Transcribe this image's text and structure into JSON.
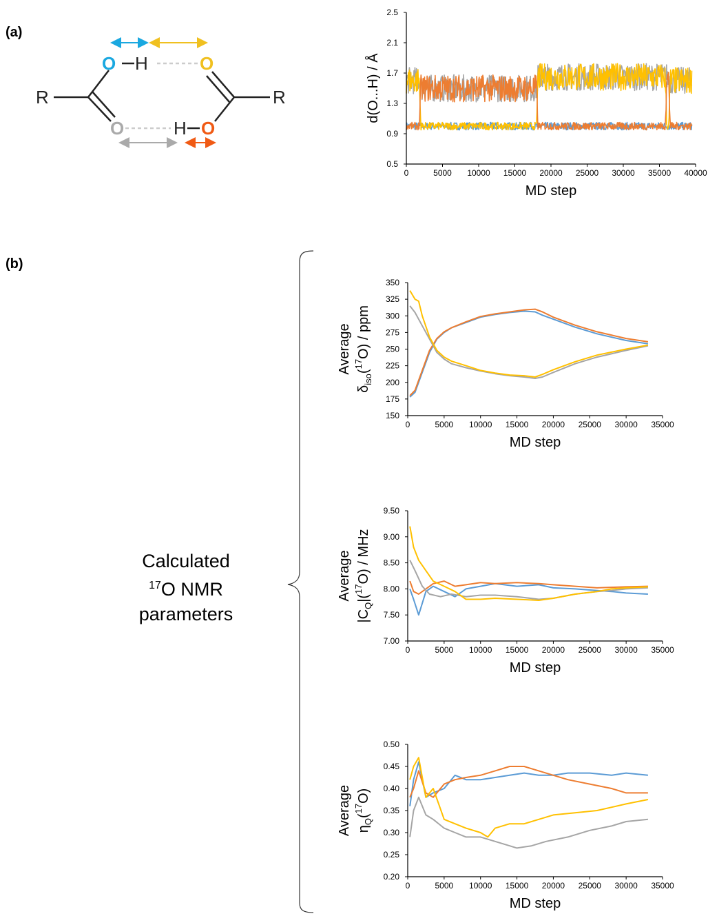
{
  "panels": {
    "a": "(a)",
    "b": "(b)"
  },
  "molecule": {
    "r_left": "R",
    "r_right": "R",
    "o_cyan": "O",
    "h_top": "H",
    "o_yellow": "O",
    "o_gray": "O",
    "h_bottom": "H",
    "o_orange": "O",
    "colors": {
      "cyan": "#1aa8e0",
      "yellow": "#f0c020",
      "gray": "#aaaaaa",
      "orange": "#f05a14",
      "dash": "#cccccc"
    }
  },
  "annotation": {
    "line1": "Calculated",
    "line2_sup": "17",
    "line2_rest": "O NMR",
    "line3": "parameters"
  },
  "series_colors": {
    "blue": "#5b9bd5",
    "orange": "#ed7d31",
    "gray": "#a5a5a5",
    "yellow": "#ffc000"
  },
  "chart_data": [
    {
      "id": "dist",
      "type": "line",
      "xlabel": "MD step",
      "ylabel": "d(O...H) / Å",
      "xlim": [
        0,
        40000
      ],
      "ylim": [
        0.5,
        2.5
      ],
      "xticks": [
        "0",
        "5000",
        "10000",
        "15000",
        "20000",
        "25000",
        "30000",
        "35000",
        "40000"
      ],
      "yticks": [
        "0.5",
        "0.9",
        "1.3",
        "1.7",
        "2.1",
        "2.5"
      ],
      "grid": false,
      "series": [
        {
          "color": "blue",
          "x": [
            0,
            1800,
            2000,
            18000,
            18200,
            36000,
            36300,
            39500
          ],
          "y": [
            1.0,
            1.0,
            1.0,
            1.0,
            1.0,
            1.0,
            1.0,
            1.0
          ]
        },
        {
          "color": "gray",
          "x": [
            0,
            1800,
            2000,
            18000,
            18200,
            36000,
            36300,
            39500
          ],
          "y": [
            1.6,
            1.6,
            1.5,
            1.5,
            1.65,
            1.65,
            1.6,
            1.6
          ]
        },
        {
          "color": "yellow",
          "x": [
            0,
            1800,
            2000,
            18000,
            18200,
            35800,
            36000,
            36300,
            36500,
            39500
          ],
          "y": [
            1.6,
            1.6,
            1.0,
            1.0,
            1.65,
            1.65,
            1.0,
            1.0,
            1.6,
            1.6
          ]
        },
        {
          "color": "orange",
          "x": [
            0,
            1800,
            2000,
            18000,
            18200,
            35800,
            36000,
            36300,
            36500,
            39500
          ],
          "y": [
            1.0,
            1.0,
            1.5,
            1.5,
            1.0,
            1.0,
            1.6,
            1.6,
            1.0,
            1.0
          ]
        }
      ]
    },
    {
      "id": "diso",
      "type": "line",
      "xlabel": "MD step",
      "ylabel_line1": "Average",
      "ylabel_main": "δ",
      "ylabel_sub": "iso",
      "ylabel_paren_open": "(",
      "ylabel_sup": "17",
      "ylabel_rest": "O) / ppm",
      "xlim": [
        0,
        35000
      ],
      "ylim": [
        150,
        350
      ],
      "xticks": [
        "0",
        "5000",
        "10000",
        "15000",
        "20000",
        "25000",
        "30000",
        "35000"
      ],
      "yticks": [
        "150",
        "175",
        "200",
        "225",
        "250",
        "275",
        "300",
        "325",
        "350"
      ],
      "grid": false,
      "series": [
        {
          "color": "blue",
          "x": [
            300,
            1000,
            2000,
            3000,
            4000,
            5000,
            6000,
            8000,
            10000,
            12000,
            14000,
            16000,
            17500,
            18500,
            20000,
            23000,
            26000,
            30000,
            33000
          ],
          "y": [
            178,
            185,
            215,
            245,
            265,
            275,
            282,
            290,
            298,
            302,
            305,
            307,
            306,
            301,
            295,
            283,
            273,
            263,
            258
          ]
        },
        {
          "color": "orange",
          "x": [
            300,
            1000,
            2000,
            3000,
            4000,
            5000,
            6000,
            8000,
            10000,
            12000,
            14000,
            16000,
            17500,
            18500,
            20000,
            23000,
            26000,
            30000,
            33000
          ],
          "y": [
            180,
            188,
            218,
            248,
            266,
            276,
            282,
            291,
            299,
            303,
            306,
            309,
            310,
            306,
            298,
            286,
            276,
            266,
            261
          ]
        },
        {
          "color": "gray",
          "x": [
            300,
            1000,
            2000,
            3000,
            4000,
            5000,
            6000,
            8000,
            10000,
            12000,
            14000,
            16000,
            17500,
            18500,
            20000,
            23000,
            26000,
            30000,
            33000
          ],
          "y": [
            315,
            305,
            285,
            265,
            245,
            235,
            228,
            222,
            217,
            213,
            210,
            208,
            206,
            208,
            215,
            228,
            238,
            248,
            255
          ]
        },
        {
          "color": "yellow",
          "x": [
            300,
            1000,
            1500,
            2000,
            3000,
            4000,
            5000,
            6000,
            8000,
            10000,
            12000,
            14000,
            16000,
            17500,
            18500,
            20000,
            23000,
            26000,
            30000,
            33000
          ],
          "y": [
            338,
            325,
            322,
            300,
            268,
            248,
            238,
            232,
            225,
            218,
            214,
            211,
            210,
            208,
            212,
            219,
            231,
            241,
            250,
            256
          ]
        }
      ]
    },
    {
      "id": "cq",
      "type": "line",
      "xlabel": "MD step",
      "ylabel_line1": "Average",
      "ylabel_pre": "|C",
      "ylabel_sub": "Q",
      "ylabel_mid": "|(",
      "ylabel_sup": "17",
      "ylabel_rest": "O) / MHz",
      "xlim": [
        0,
        35000
      ],
      "ylim": [
        7.0,
        9.5
      ],
      "xticks": [
        "0",
        "5000",
        "10000",
        "15000",
        "20000",
        "25000",
        "30000",
        "35000"
      ],
      "yticks": [
        "7.00",
        "7.50",
        "8.00",
        "8.50",
        "9.00",
        "9.50"
      ],
      "grid": false,
      "series": [
        {
          "color": "blue",
          "x": [
            300,
            800,
            1500,
            2500,
            3500,
            5000,
            6500,
            8000,
            10000,
            12000,
            15000,
            18000,
            20000,
            23000,
            26000,
            28000,
            30000,
            33000
          ],
          "y": [
            8.0,
            7.8,
            7.5,
            7.95,
            8.05,
            7.95,
            7.85,
            8.0,
            8.05,
            8.1,
            8.05,
            8.08,
            8.02,
            8.0,
            7.97,
            7.95,
            7.92,
            7.9
          ]
        },
        {
          "color": "orange",
          "x": [
            300,
            800,
            1500,
            2500,
            3500,
            5000,
            6500,
            8000,
            10000,
            12000,
            15000,
            18000,
            20000,
            23000,
            26000,
            28000,
            30000,
            33000
          ],
          "y": [
            8.15,
            7.95,
            7.9,
            8.0,
            8.1,
            8.15,
            8.05,
            8.08,
            8.12,
            8.1,
            8.12,
            8.1,
            8.08,
            8.05,
            8.02,
            8.03,
            8.04,
            8.05
          ]
        },
        {
          "color": "gray",
          "x": [
            300,
            1000,
            2000,
            3000,
            4500,
            6000,
            8000,
            10000,
            12000,
            15000,
            18000,
            20000,
            23000,
            26000,
            28000,
            30000,
            33000
          ],
          "y": [
            8.55,
            8.35,
            8.05,
            7.9,
            7.85,
            7.9,
            7.85,
            7.88,
            7.88,
            7.85,
            7.8,
            7.82,
            7.9,
            7.95,
            7.97,
            8.0,
            8.02
          ]
        },
        {
          "color": "yellow",
          "x": [
            300,
            800,
            1500,
            2500,
            3500,
            5000,
            6500,
            8000,
            10000,
            12000,
            15000,
            18000,
            20000,
            23000,
            26000,
            28000,
            30000,
            33000
          ],
          "y": [
            9.2,
            8.8,
            8.55,
            8.35,
            8.15,
            8.05,
            7.95,
            7.8,
            7.8,
            7.82,
            7.8,
            7.78,
            7.82,
            7.9,
            7.95,
            8.0,
            8.02,
            8.04
          ]
        }
      ]
    },
    {
      "id": "eta",
      "type": "line",
      "xlabel": "MD step",
      "ylabel_line1": "Average",
      "ylabel_main": "η",
      "ylabel_sub": "Q",
      "ylabel_paren_open": "(",
      "ylabel_sup": "17",
      "ylabel_rest": "O)",
      "xlim": [
        0,
        35000
      ],
      "ylim": [
        0.2,
        0.5
      ],
      "xticks": [
        "0",
        "5000",
        "10000",
        "15000",
        "20000",
        "25000",
        "30000",
        "35000"
      ],
      "yticks": [
        "0.20",
        "0.25",
        "0.30",
        "0.35",
        "0.40",
        "0.45",
        "0.50"
      ],
      "grid": false,
      "series": [
        {
          "color": "blue",
          "x": [
            300,
            800,
            1500,
            2500,
            3500,
            5000,
            6500,
            8000,
            10000,
            12000,
            14000,
            16000,
            18000,
            20000,
            22000,
            25000,
            28000,
            30000,
            33000
          ],
          "y": [
            0.36,
            0.42,
            0.46,
            0.38,
            0.39,
            0.4,
            0.43,
            0.42,
            0.42,
            0.425,
            0.43,
            0.435,
            0.43,
            0.43,
            0.435,
            0.435,
            0.43,
            0.435,
            0.43
          ]
        },
        {
          "color": "orange",
          "x": [
            300,
            800,
            1500,
            2500,
            3500,
            5000,
            6500,
            8000,
            10000,
            12000,
            14000,
            16000,
            18000,
            20000,
            22000,
            25000,
            28000,
            30000,
            33000
          ],
          "y": [
            0.38,
            0.4,
            0.44,
            0.39,
            0.38,
            0.41,
            0.42,
            0.425,
            0.43,
            0.44,
            0.45,
            0.45,
            0.44,
            0.43,
            0.42,
            0.41,
            0.4,
            0.39,
            0.39
          ]
        },
        {
          "color": "gray",
          "x": [
            300,
            800,
            1500,
            2500,
            3500,
            5000,
            6500,
            8000,
            10000,
            12000,
            14000,
            15000,
            17000,
            19000,
            22000,
            25000,
            28000,
            30000,
            33000
          ],
          "y": [
            0.29,
            0.35,
            0.38,
            0.34,
            0.33,
            0.31,
            0.3,
            0.29,
            0.29,
            0.28,
            0.27,
            0.265,
            0.27,
            0.28,
            0.29,
            0.305,
            0.315,
            0.325,
            0.33
          ]
        },
        {
          "color": "yellow",
          "x": [
            300,
            800,
            1500,
            2500,
            3500,
            5000,
            6500,
            8000,
            10000,
            11000,
            12000,
            14000,
            16000,
            18000,
            20000,
            23000,
            26000,
            30000,
            33000
          ],
          "y": [
            0.42,
            0.45,
            0.47,
            0.38,
            0.4,
            0.33,
            0.32,
            0.31,
            0.3,
            0.29,
            0.31,
            0.32,
            0.32,
            0.33,
            0.34,
            0.345,
            0.35,
            0.365,
            0.375
          ]
        }
      ]
    }
  ]
}
